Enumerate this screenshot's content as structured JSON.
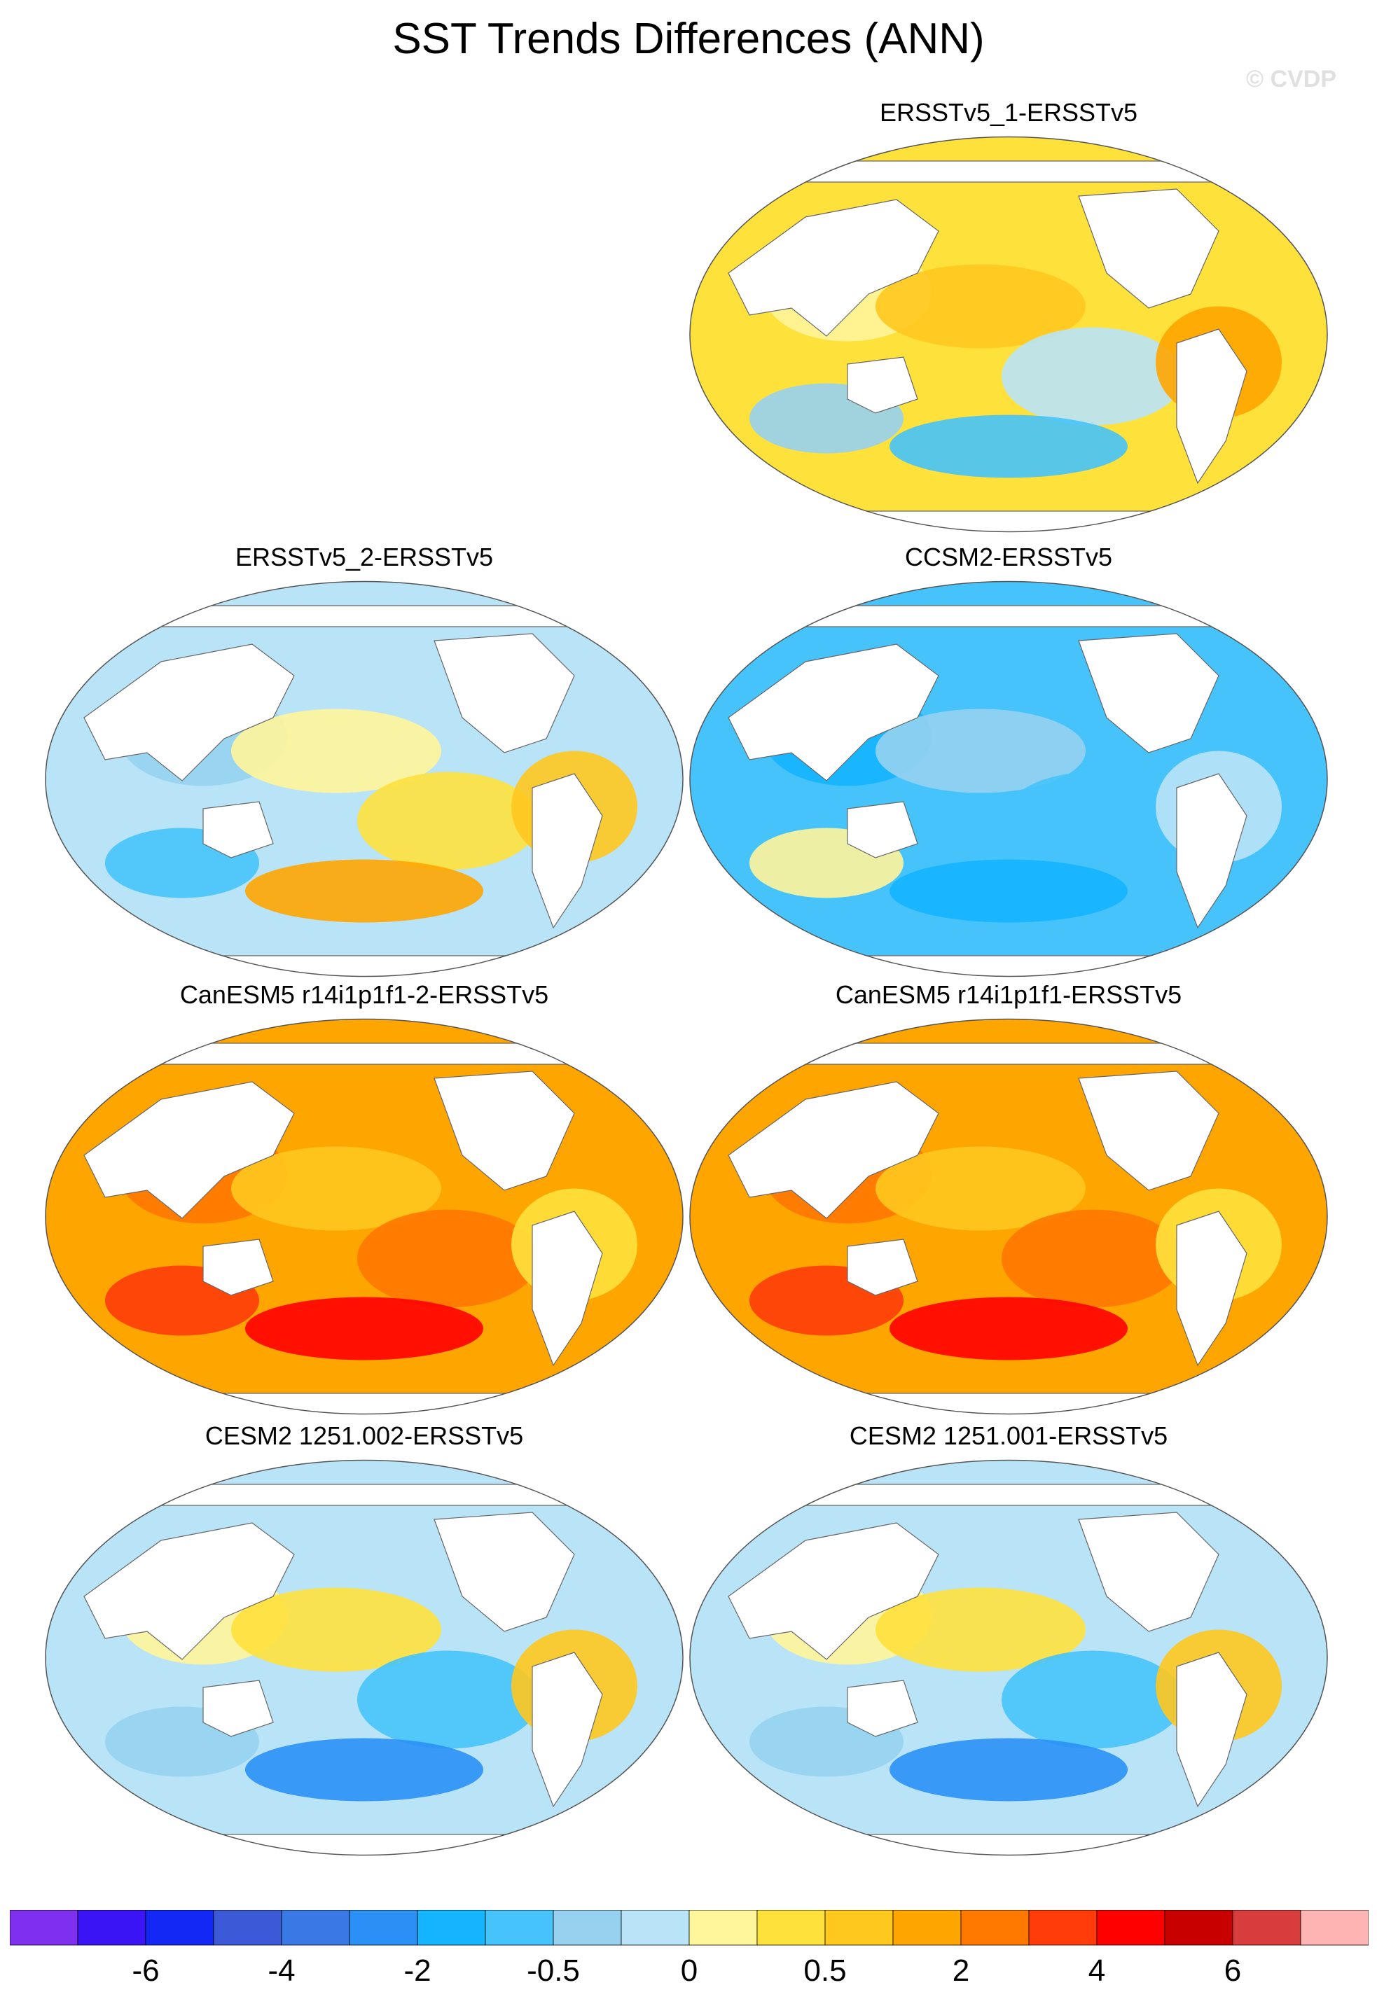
{
  "title": "SST Trends Differences (ANN)",
  "watermark": "© CVDP",
  "panels": [
    {
      "title": "ERSSTv5_1-ERSSTv5",
      "pattern": "warm-mixed"
    },
    {
      "title": "ERSSTv5_2-ERSSTv5",
      "pattern": "cool-mixed"
    },
    {
      "title": "CCSM2-ERSSTv5",
      "pattern": "cool"
    },
    {
      "title": "CanESM5 r14i1p1f1-2-ERSSTv5",
      "pattern": "hot"
    },
    {
      "title": "CanESM5 r14i1p1f1-ERSSTv5",
      "pattern": "hot"
    },
    {
      "title": "CESM2 1251.002-ERSSTv5",
      "pattern": "neutral-mixed"
    },
    {
      "title": "CESM2 1251.001-ERSSTv5",
      "pattern": "neutral-mixed"
    }
  ],
  "colorbar": {
    "colors": [
      "#7f2ff0",
      "#3a14f5",
      "#1428f5",
      "#3c5ad8",
      "#3a78e6",
      "#2a90f5",
      "#14b4ff",
      "#46c3fa",
      "#96d2f0",
      "#b9e3f7",
      "#fff59a",
      "#ffe13c",
      "#ffc81e",
      "#ffa500",
      "#ff7800",
      "#ff3c0a",
      "#ff0000",
      "#c80000",
      "#d83c3c",
      "#ffb4b4"
    ],
    "labels": [
      "-6",
      "-4",
      "-2",
      "-0.5",
      "0",
      "0.5",
      "2",
      "4",
      "6"
    ]
  }
}
